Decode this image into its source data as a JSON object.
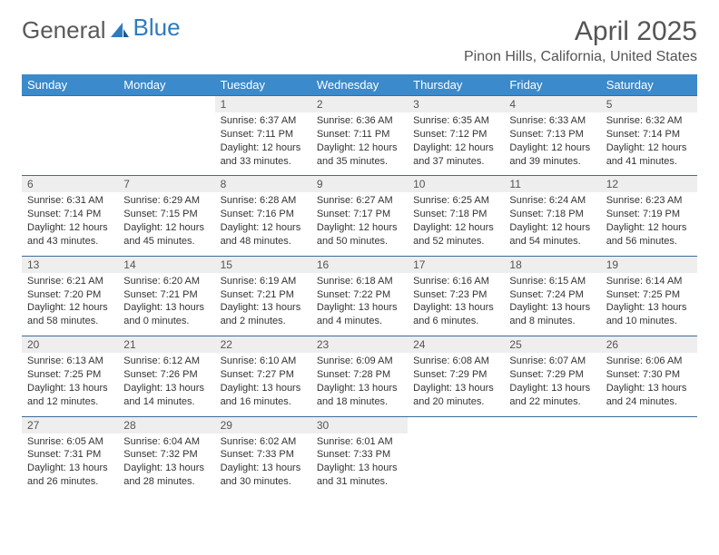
{
  "brand": {
    "part1": "General",
    "part2": "Blue"
  },
  "title": "April 2025",
  "location": "Pinon Hills, California, United States",
  "colors": {
    "header_bg": "#3b8acb",
    "header_text": "#ffffff",
    "daynum_bg": "#eeeeee",
    "row_separator": "#3b6d9a",
    "brand_gray": "#5a5a5a",
    "brand_blue": "#2f7bbf",
    "body_text": "#333333"
  },
  "weekdays": [
    "Sunday",
    "Monday",
    "Tuesday",
    "Wednesday",
    "Thursday",
    "Friday",
    "Saturday"
  ],
  "weeks": [
    [
      null,
      null,
      {
        "n": "1",
        "sr": "6:37 AM",
        "ss": "7:11 PM",
        "dl1": "12 hours",
        "dl2": "and 33 minutes."
      },
      {
        "n": "2",
        "sr": "6:36 AM",
        "ss": "7:11 PM",
        "dl1": "12 hours",
        "dl2": "and 35 minutes."
      },
      {
        "n": "3",
        "sr": "6:35 AM",
        "ss": "7:12 PM",
        "dl1": "12 hours",
        "dl2": "and 37 minutes."
      },
      {
        "n": "4",
        "sr": "6:33 AM",
        "ss": "7:13 PM",
        "dl1": "12 hours",
        "dl2": "and 39 minutes."
      },
      {
        "n": "5",
        "sr": "6:32 AM",
        "ss": "7:14 PM",
        "dl1": "12 hours",
        "dl2": "and 41 minutes."
      }
    ],
    [
      {
        "n": "6",
        "sr": "6:31 AM",
        "ss": "7:14 PM",
        "dl1": "12 hours",
        "dl2": "and 43 minutes."
      },
      {
        "n": "7",
        "sr": "6:29 AM",
        "ss": "7:15 PM",
        "dl1": "12 hours",
        "dl2": "and 45 minutes."
      },
      {
        "n": "8",
        "sr": "6:28 AM",
        "ss": "7:16 PM",
        "dl1": "12 hours",
        "dl2": "and 48 minutes."
      },
      {
        "n": "9",
        "sr": "6:27 AM",
        "ss": "7:17 PM",
        "dl1": "12 hours",
        "dl2": "and 50 minutes."
      },
      {
        "n": "10",
        "sr": "6:25 AM",
        "ss": "7:18 PM",
        "dl1": "12 hours",
        "dl2": "and 52 minutes."
      },
      {
        "n": "11",
        "sr": "6:24 AM",
        "ss": "7:18 PM",
        "dl1": "12 hours",
        "dl2": "and 54 minutes."
      },
      {
        "n": "12",
        "sr": "6:23 AM",
        "ss": "7:19 PM",
        "dl1": "12 hours",
        "dl2": "and 56 minutes."
      }
    ],
    [
      {
        "n": "13",
        "sr": "6:21 AM",
        "ss": "7:20 PM",
        "dl1": "12 hours",
        "dl2": "and 58 minutes."
      },
      {
        "n": "14",
        "sr": "6:20 AM",
        "ss": "7:21 PM",
        "dl1": "13 hours",
        "dl2": "and 0 minutes."
      },
      {
        "n": "15",
        "sr": "6:19 AM",
        "ss": "7:21 PM",
        "dl1": "13 hours",
        "dl2": "and 2 minutes."
      },
      {
        "n": "16",
        "sr": "6:18 AM",
        "ss": "7:22 PM",
        "dl1": "13 hours",
        "dl2": "and 4 minutes."
      },
      {
        "n": "17",
        "sr": "6:16 AM",
        "ss": "7:23 PM",
        "dl1": "13 hours",
        "dl2": "and 6 minutes."
      },
      {
        "n": "18",
        "sr": "6:15 AM",
        "ss": "7:24 PM",
        "dl1": "13 hours",
        "dl2": "and 8 minutes."
      },
      {
        "n": "19",
        "sr": "6:14 AM",
        "ss": "7:25 PM",
        "dl1": "13 hours",
        "dl2": "and 10 minutes."
      }
    ],
    [
      {
        "n": "20",
        "sr": "6:13 AM",
        "ss": "7:25 PM",
        "dl1": "13 hours",
        "dl2": "and 12 minutes."
      },
      {
        "n": "21",
        "sr": "6:12 AM",
        "ss": "7:26 PM",
        "dl1": "13 hours",
        "dl2": "and 14 minutes."
      },
      {
        "n": "22",
        "sr": "6:10 AM",
        "ss": "7:27 PM",
        "dl1": "13 hours",
        "dl2": "and 16 minutes."
      },
      {
        "n": "23",
        "sr": "6:09 AM",
        "ss": "7:28 PM",
        "dl1": "13 hours",
        "dl2": "and 18 minutes."
      },
      {
        "n": "24",
        "sr": "6:08 AM",
        "ss": "7:29 PM",
        "dl1": "13 hours",
        "dl2": "and 20 minutes."
      },
      {
        "n": "25",
        "sr": "6:07 AM",
        "ss": "7:29 PM",
        "dl1": "13 hours",
        "dl2": "and 22 minutes."
      },
      {
        "n": "26",
        "sr": "6:06 AM",
        "ss": "7:30 PM",
        "dl1": "13 hours",
        "dl2": "and 24 minutes."
      }
    ],
    [
      {
        "n": "27",
        "sr": "6:05 AM",
        "ss": "7:31 PM",
        "dl1": "13 hours",
        "dl2": "and 26 minutes."
      },
      {
        "n": "28",
        "sr": "6:04 AM",
        "ss": "7:32 PM",
        "dl1": "13 hours",
        "dl2": "and 28 minutes."
      },
      {
        "n": "29",
        "sr": "6:02 AM",
        "ss": "7:33 PM",
        "dl1": "13 hours",
        "dl2": "and 30 minutes."
      },
      {
        "n": "30",
        "sr": "6:01 AM",
        "ss": "7:33 PM",
        "dl1": "13 hours",
        "dl2": "and 31 minutes."
      },
      null,
      null,
      null
    ]
  ]
}
